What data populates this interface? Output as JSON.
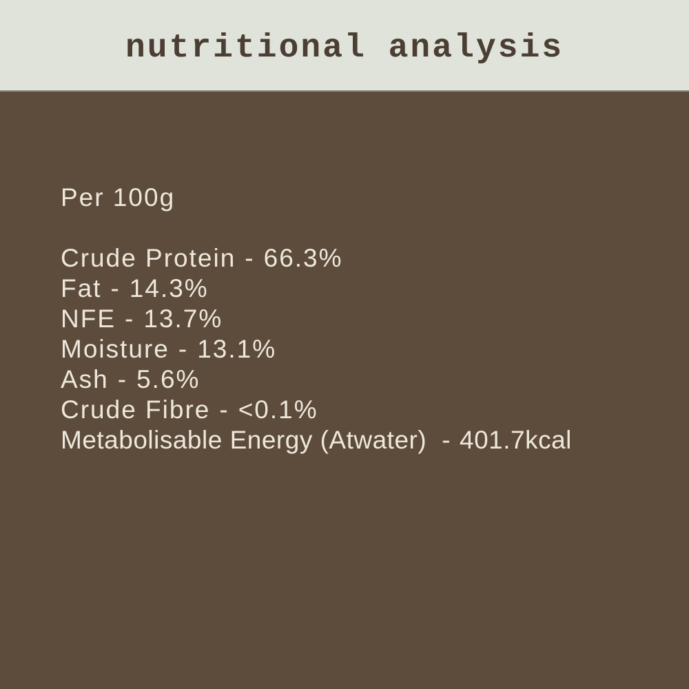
{
  "colors": {
    "band_background": "#dfe3d9",
    "band_divider": "#8f8b7d",
    "page_background": "#5d4b3c",
    "title_text": "#4b3e33",
    "body_text": "#ede8db"
  },
  "header": {
    "title": "nutritional analysis"
  },
  "nutrition": {
    "serving": "Per 100g",
    "separator": "-",
    "rows": [
      {
        "label": "Crude Protein",
        "value": "66.3%"
      },
      {
        "label": "Fat",
        "value": "14.3%"
      },
      {
        "label": "NFE",
        "value": "13.7%"
      },
      {
        "label": "Moisture",
        "value": "13.1%"
      },
      {
        "label": "Ash",
        "value": "5.6%"
      },
      {
        "label": "Crude Fibre",
        "value": "<0.1%"
      },
      {
        "label": "Metabolisable Energy (Atwater)",
        "value": "401.7kcal"
      }
    ]
  }
}
